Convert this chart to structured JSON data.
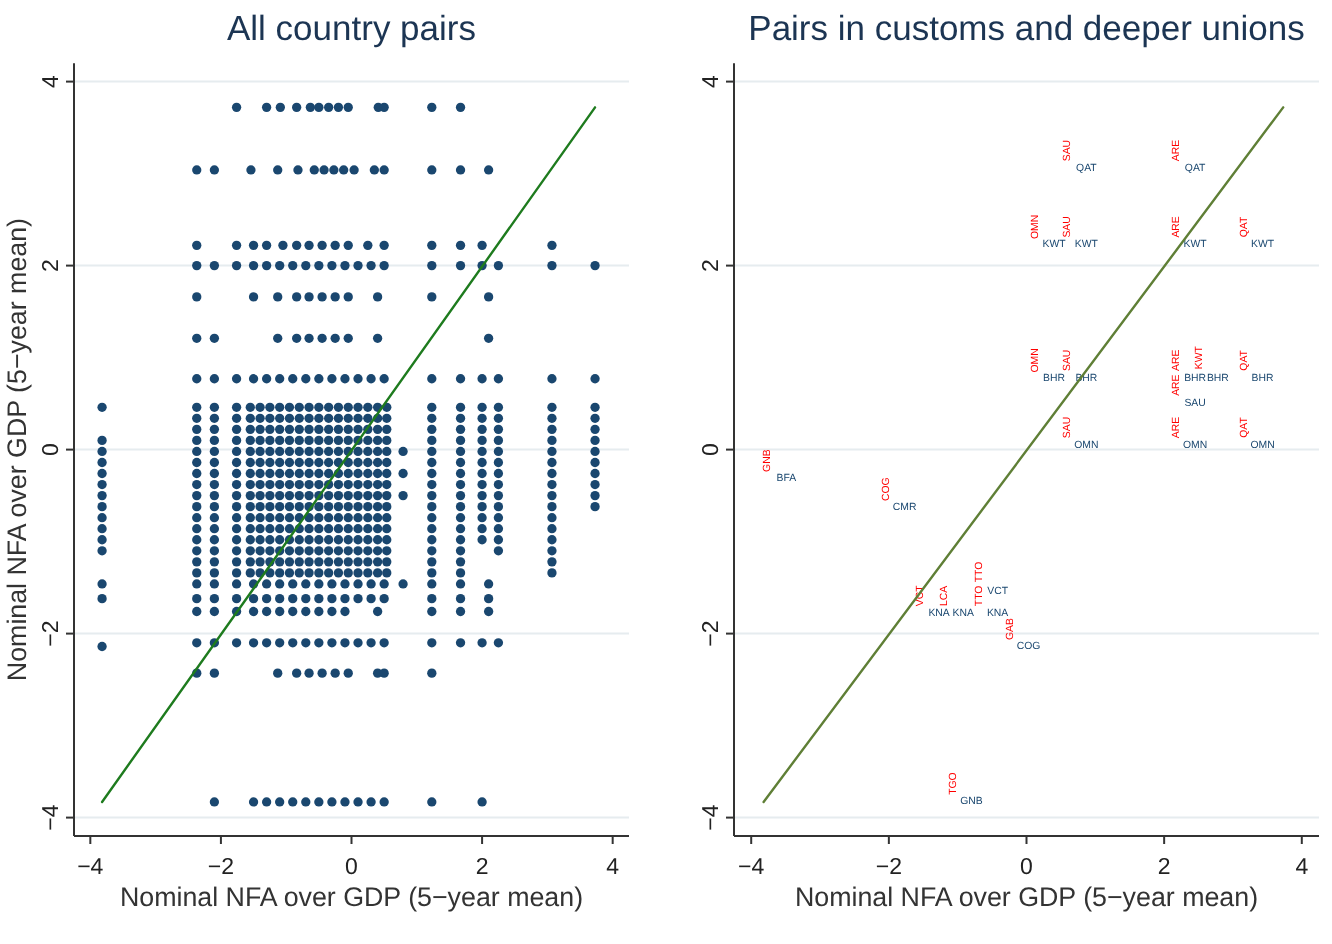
{
  "chart_data": [
    {
      "type": "scatter",
      "title": "All country pairs",
      "xlabel": "Nominal NFA over GDP (5−year mean)",
      "ylabel": "Nominal NFA over GDP (5−year mean)",
      "grid": "y",
      "xlim": [
        -4.25,
        4.25
      ],
      "ylim": [
        -4.2,
        4.2
      ],
      "xticks": [
        -4,
        -2,
        0,
        2,
        4
      ],
      "yticks": [
        -4,
        -2,
        0,
        2,
        4
      ],
      "series": [
        {
          "color": "#1a476f",
          "marker": "circle",
          "x": [
            -1.76,
            -1.3,
            -1.09,
            -0.84,
            -0.63,
            -0.5,
            -0.35,
            -0.2,
            -0.05,
            0.41,
            0.5,
            1.23,
            1.67,
            -2.37,
            -2.1,
            -1.54,
            -1.13,
            -0.82,
            -0.57,
            -0.42,
            -0.27,
            -0.12,
            0.04,
            0.35,
            0.5,
            1.23,
            1.67,
            2.1,
            -2.37,
            -1.76,
            -1.5,
            -1.3,
            -1.05,
            -0.84,
            -0.65,
            -0.45,
            -0.25,
            -0.05,
            0.25,
            0.5,
            1.23,
            1.67,
            2,
            3.07,
            -2.37,
            -2.1,
            -1.76,
            -1.5,
            -1.3,
            -1.1,
            -0.9,
            -0.7,
            -0.5,
            -0.3,
            -0.1,
            0.1,
            0.3,
            0.5,
            1.23,
            1.67,
            2,
            2.25,
            3.07,
            3.73,
            -2.37,
            -1.5,
            -1.13,
            -0.84,
            -0.65,
            -0.45,
            -0.25,
            -0.05,
            0.4,
            1.23,
            2.1,
            -2.37,
            -2.1,
            -1.13,
            -0.84,
            -0.65,
            -0.45,
            -0.25,
            -0.05,
            0.4,
            2.1,
            -2.37,
            -2.1,
            -1.76,
            -1.5,
            -1.3,
            -1.1,
            -0.9,
            -0.7,
            -0.5,
            -0.3,
            -0.1,
            0.1,
            0.3,
            0.5,
            1.23,
            1.67,
            2,
            2.25,
            3.07,
            3.73,
            -2.37,
            -2.1,
            -1.76,
            -1.55,
            -1.4,
            -1.25,
            -1.1,
            -0.95,
            -0.8,
            -0.65,
            -0.5,
            -0.35,
            -0.2,
            -0.05,
            0.1,
            0.25,
            0.4,
            0.54,
            1.23,
            1.67,
            3.07,
            -3.82,
            2,
            2.25,
            3.73,
            -2.37,
            -2.1,
            -1.76,
            -1.55,
            -1.4,
            -1.25,
            -1.1,
            -0.95,
            -0.8,
            -0.65,
            -0.5,
            -0.35,
            -0.2,
            -0.05,
            0.1,
            0.25,
            0.4,
            0.54,
            1.23,
            1.67,
            3.07,
            2,
            2.25,
            3.73,
            -2.37,
            -2.1,
            -1.76,
            -1.55,
            -1.4,
            -1.25,
            -1.1,
            -0.95,
            -0.8,
            -0.65,
            -0.5,
            -0.35,
            -0.2,
            -0.05,
            0.1,
            0.25,
            0.4,
            0.54,
            1.23,
            1.67,
            3.07,
            2,
            2.25,
            3.73,
            -2.37,
            -2.1,
            -1.76,
            -1.55,
            -1.4,
            -1.25,
            -1.1,
            -0.95,
            -0.8,
            -0.65,
            -0.5,
            -0.35,
            -0.2,
            -0.05,
            0.1,
            0.25,
            0.4,
            0.54,
            1.23,
            1.67,
            3.07,
            -3.82,
            2,
            2.25,
            3.73,
            -2.37,
            -2.1,
            -1.76,
            -1.55,
            -1.4,
            -1.25,
            -1.1,
            -0.95,
            -0.8,
            -0.65,
            -0.5,
            -0.35,
            -0.2,
            -0.05,
            0.1,
            0.25,
            0.4,
            0.54,
            1.23,
            1.67,
            3.07,
            -3.82,
            0.79,
            2,
            2.25,
            3.73,
            -2.37,
            -2.1,
            -1.76,
            -1.55,
            -1.4,
            -1.25,
            -1.1,
            -0.95,
            -0.8,
            -0.65,
            -0.5,
            -0.35,
            -0.2,
            -0.05,
            0.1,
            0.25,
            0.4,
            0.54,
            1.23,
            1.67,
            3.07,
            -3.82,
            2,
            2.25,
            3.73,
            -2.37,
            -2.1,
            -1.76,
            -1.55,
            -1.4,
            -1.25,
            -1.1,
            -0.95,
            -0.8,
            -0.65,
            -0.5,
            -0.35,
            -0.2,
            -0.05,
            0.1,
            0.25,
            0.4,
            0.54,
            1.23,
            1.67,
            3.07,
            -3.82,
            0.79,
            2,
            2.25,
            3.73,
            -2.37,
            -2.1,
            -1.76,
            -1.55,
            -1.4,
            -1.25,
            -1.1,
            -0.95,
            -0.8,
            -0.65,
            -0.5,
            -0.35,
            -0.2,
            -0.05,
            0.1,
            0.25,
            0.4,
            0.54,
            1.23,
            1.67,
            3.07,
            -3.82,
            2,
            2.25,
            3.73,
            -2.37,
            -2.1,
            -1.76,
            -1.55,
            -1.4,
            -1.25,
            -1.1,
            -0.95,
            -0.8,
            -0.65,
            -0.5,
            -0.35,
            -0.2,
            -0.05,
            0.1,
            0.25,
            0.4,
            0.54,
            1.23,
            1.67,
            3.07,
            -3.82,
            0.79,
            2,
            2.25,
            3.73,
            -2.37,
            -2.1,
            -1.76,
            -1.55,
            -1.4,
            -1.25,
            -1.1,
            -0.95,
            -0.8,
            -0.65,
            -0.5,
            -0.35,
            -0.2,
            -0.05,
            0.1,
            0.25,
            0.4,
            0.54,
            1.23,
            1.67,
            3.07,
            -3.82,
            2,
            2.25,
            3.73,
            -2.37,
            -2.1,
            -1.76,
            -1.55,
            -1.4,
            -1.25,
            -1.1,
            -0.95,
            -0.8,
            -0.65,
            -0.5,
            -0.35,
            -0.2,
            -0.05,
            0.1,
            0.25,
            0.4,
            0.54,
            1.23,
            1.67,
            3.07,
            -3.82,
            2,
            2.25,
            -2.37,
            -2.1,
            -1.76,
            -1.55,
            -1.4,
            -1.25,
            -1.1,
            -0.95,
            -0.8,
            -0.65,
            -0.5,
            -0.35,
            -0.2,
            -0.05,
            0.1,
            0.25,
            0.4,
            0.54,
            1.23,
            1.67,
            3.07,
            -3.82,
            2,
            2.25,
            -2.37,
            -2.1,
            -1.76,
            -1.55,
            -1.4,
            -1.25,
            -1.1,
            -0.95,
            -0.8,
            -0.65,
            -0.5,
            -0.35,
            -0.2,
            -0.05,
            0.1,
            0.25,
            0.4,
            0.54,
            1.23,
            1.67,
            3.07,
            -3.82,
            2,
            2.25,
            -2.37,
            -2.1,
            -1.76,
            -1.55,
            -1.4,
            -1.25,
            -1.1,
            -0.95,
            -0.8,
            -0.65,
            -0.5,
            -0.35,
            -0.2,
            -0.05,
            0.1,
            0.25,
            0.4,
            0.54,
            1.23,
            1.67,
            3.07,
            -3.82,
            2.25,
            -2.37,
            -2.1,
            -1.76,
            -1.55,
            -1.4,
            -1.25,
            -1.1,
            -0.95,
            -0.8,
            -0.65,
            -0.5,
            -0.35,
            -0.2,
            -0.05,
            0.1,
            0.25,
            0.4,
            0.54,
            1.23,
            1.67,
            3.07,
            -2.37,
            -2.1,
            -1.76,
            -1.55,
            -1.4,
            -1.25,
            -1.1,
            -0.95,
            -0.8,
            -0.65,
            -0.5,
            -0.35,
            -0.2,
            -0.05,
            0.1,
            0.25,
            0.4,
            0.54,
            1.23,
            1.67,
            3.07,
            -3.82,
            -2.37,
            -2.1,
            -1.76,
            -1.5,
            -1.3,
            -1.1,
            -0.9,
            -0.7,
            -0.5,
            -0.3,
            -0.1,
            0.1,
            0.3,
            0.5,
            0.79,
            1.23,
            1.67,
            2.1,
            -3.82,
            -2.37,
            -2.1,
            -1.76,
            -1.5,
            -1.3,
            -1.1,
            -0.9,
            -0.7,
            -0.5,
            -0.3,
            -0.1,
            0.1,
            0.3,
            0.5,
            1.23,
            1.67,
            2.1,
            -2.37,
            -2.1,
            -1.76,
            -1.5,
            -1.3,
            -1.1,
            -0.9,
            -0.7,
            -0.5,
            -0.3,
            -0.1,
            0.4,
            1.23,
            1.67,
            2.1,
            -2.37,
            -2.1,
            -1.76,
            -1.5,
            -1.3,
            -1.1,
            -0.9,
            -0.7,
            -0.5,
            -0.3,
            -0.1,
            0.1,
            0.3,
            0.5,
            1.23,
            1.67,
            2,
            2.25,
            -3.82,
            -2.37,
            -2.1,
            -1.13,
            -0.84,
            -0.65,
            -0.45,
            -0.25,
            -0.05,
            0.4,
            0.5,
            1.23,
            -2.1,
            -1.5,
            -1.3,
            -1.1,
            -0.9,
            -0.7,
            -0.5,
            -0.3,
            -0.1,
            0.1,
            0.3,
            0.5,
            1.23,
            2
          ],
          "values": [
            3.72,
            3.72,
            3.72,
            3.72,
            3.72,
            3.72,
            3.72,
            3.72,
            3.72,
            3.72,
            3.72,
            3.72,
            3.72,
            3.04,
            3.04,
            3.04,
            3.04,
            3.04,
            3.04,
            3.04,
            3.04,
            3.04,
            3.04,
            3.04,
            3.04,
            3.04,
            3.04,
            3.04,
            2.22,
            2.22,
            2.22,
            2.22,
            2.22,
            2.22,
            2.22,
            2.22,
            2.22,
            2.22,
            2.22,
            2.22,
            2.22,
            2.22,
            2.22,
            2.22,
            2,
            2,
            2,
            2,
            2,
            2,
            2,
            2,
            2,
            2,
            2,
            2,
            2,
            2,
            2,
            2,
            2,
            2,
            2,
            2,
            1.66,
            1.66,
            1.66,
            1.66,
            1.66,
            1.66,
            1.66,
            1.66,
            1.66,
            1.66,
            1.66,
            1.21,
            1.21,
            1.21,
            1.21,
            1.21,
            1.21,
            1.21,
            1.21,
            1.21,
            1.21,
            0.77,
            0.77,
            0.77,
            0.77,
            0.77,
            0.77,
            0.77,
            0.77,
            0.77,
            0.77,
            0.77,
            0.77,
            0.77,
            0.77,
            0.77,
            0.77,
            0.77,
            0.77,
            0.77,
            0.77,
            0.46,
            0.46,
            0.46,
            0.46,
            0.46,
            0.46,
            0.46,
            0.46,
            0.46,
            0.46,
            0.46,
            0.46,
            0.46,
            0.46,
            0.46,
            0.46,
            0.46,
            0.46,
            0.46,
            0.46,
            0.46,
            0.46,
            0.46,
            0.46,
            0.46,
            0.34,
            0.34,
            0.34,
            0.34,
            0.34,
            0.34,
            0.34,
            0.34,
            0.34,
            0.34,
            0.34,
            0.34,
            0.34,
            0.34,
            0.34,
            0.34,
            0.34,
            0.34,
            0.34,
            0.34,
            0.34,
            0.34,
            0.34,
            0.34,
            0.22,
            0.22,
            0.22,
            0.22,
            0.22,
            0.22,
            0.22,
            0.22,
            0.22,
            0.22,
            0.22,
            0.22,
            0.22,
            0.22,
            0.22,
            0.22,
            0.22,
            0.22,
            0.22,
            0.22,
            0.22,
            0.22,
            0.22,
            0.22,
            0.1,
            0.1,
            0.1,
            0.1,
            0.1,
            0.1,
            0.1,
            0.1,
            0.1,
            0.1,
            0.1,
            0.1,
            0.1,
            0.1,
            0.1,
            0.1,
            0.1,
            0.1,
            0.1,
            0.1,
            0.1,
            0.1,
            0.1,
            0.1,
            0.1,
            -0.02,
            -0.02,
            -0.02,
            -0.02,
            -0.02,
            -0.02,
            -0.02,
            -0.02,
            -0.02,
            -0.02,
            -0.02,
            -0.02,
            -0.02,
            -0.02,
            -0.02,
            -0.02,
            -0.02,
            -0.02,
            -0.02,
            -0.02,
            -0.02,
            -0.02,
            -0.02,
            -0.02,
            -0.02,
            -0.02,
            -0.14,
            -0.14,
            -0.14,
            -0.14,
            -0.14,
            -0.14,
            -0.14,
            -0.14,
            -0.14,
            -0.14,
            -0.14,
            -0.14,
            -0.14,
            -0.14,
            -0.14,
            -0.14,
            -0.14,
            -0.14,
            -0.14,
            -0.14,
            -0.14,
            -0.14,
            -0.14,
            -0.14,
            -0.14,
            -0.26,
            -0.26,
            -0.26,
            -0.26,
            -0.26,
            -0.26,
            -0.26,
            -0.26,
            -0.26,
            -0.26,
            -0.26,
            -0.26,
            -0.26,
            -0.26,
            -0.26,
            -0.26,
            -0.26,
            -0.26,
            -0.26,
            -0.26,
            -0.26,
            -0.26,
            -0.26,
            -0.26,
            -0.26,
            -0.26,
            -0.38,
            -0.38,
            -0.38,
            -0.38,
            -0.38,
            -0.38,
            -0.38,
            -0.38,
            -0.38,
            -0.38,
            -0.38,
            -0.38,
            -0.38,
            -0.38,
            -0.38,
            -0.38,
            -0.38,
            -0.38,
            -0.38,
            -0.38,
            -0.38,
            -0.38,
            -0.38,
            -0.38,
            -0.38,
            -0.5,
            -0.5,
            -0.5,
            -0.5,
            -0.5,
            -0.5,
            -0.5,
            -0.5,
            -0.5,
            -0.5,
            -0.5,
            -0.5,
            -0.5,
            -0.5,
            -0.5,
            -0.5,
            -0.5,
            -0.5,
            -0.5,
            -0.5,
            -0.5,
            -0.5,
            -0.5,
            -0.5,
            -0.5,
            -0.5,
            -0.62,
            -0.62,
            -0.62,
            -0.62,
            -0.62,
            -0.62,
            -0.62,
            -0.62,
            -0.62,
            -0.62,
            -0.62,
            -0.62,
            -0.62,
            -0.62,
            -0.62,
            -0.62,
            -0.62,
            -0.62,
            -0.62,
            -0.62,
            -0.62,
            -0.62,
            -0.62,
            -0.62,
            -0.62,
            -0.74,
            -0.74,
            -0.74,
            -0.74,
            -0.74,
            -0.74,
            -0.74,
            -0.74,
            -0.74,
            -0.74,
            -0.74,
            -0.74,
            -0.74,
            -0.74,
            -0.74,
            -0.74,
            -0.74,
            -0.74,
            -0.74,
            -0.74,
            -0.74,
            -0.74,
            -0.74,
            -0.74,
            -0.86,
            -0.86,
            -0.86,
            -0.86,
            -0.86,
            -0.86,
            -0.86,
            -0.86,
            -0.86,
            -0.86,
            -0.86,
            -0.86,
            -0.86,
            -0.86,
            -0.86,
            -0.86,
            -0.86,
            -0.86,
            -0.86,
            -0.86,
            -0.86,
            -0.86,
            -0.86,
            -0.86,
            -0.98,
            -0.98,
            -0.98,
            -0.98,
            -0.98,
            -0.98,
            -0.98,
            -0.98,
            -0.98,
            -0.98,
            -0.98,
            -0.98,
            -0.98,
            -0.98,
            -0.98,
            -0.98,
            -0.98,
            -0.98,
            -0.98,
            -0.98,
            -0.98,
            -0.98,
            -0.98,
            -0.98,
            -1.1,
            -1.1,
            -1.1,
            -1.1,
            -1.1,
            -1.1,
            -1.1,
            -1.1,
            -1.1,
            -1.1,
            -1.1,
            -1.1,
            -1.1,
            -1.1,
            -1.1,
            -1.1,
            -1.1,
            -1.1,
            -1.1,
            -1.1,
            -1.1,
            -1.1,
            -1.1,
            -1.22,
            -1.22,
            -1.22,
            -1.22,
            -1.22,
            -1.22,
            -1.22,
            -1.22,
            -1.22,
            -1.22,
            -1.22,
            -1.22,
            -1.22,
            -1.22,
            -1.22,
            -1.22,
            -1.22,
            -1.22,
            -1.22,
            -1.22,
            -1.22,
            -1.34,
            -1.34,
            -1.34,
            -1.34,
            -1.34,
            -1.34,
            -1.34,
            -1.34,
            -1.34,
            -1.34,
            -1.34,
            -1.34,
            -1.34,
            -1.34,
            -1.34,
            -1.34,
            -1.34,
            -1.34,
            -1.34,
            -1.34,
            -1.34,
            -1.46,
            -1.46,
            -1.46,
            -1.46,
            -1.46,
            -1.46,
            -1.46,
            -1.46,
            -1.46,
            -1.46,
            -1.46,
            -1.46,
            -1.46,
            -1.46,
            -1.46,
            -1.46,
            -1.46,
            -1.46,
            -1.46,
            -1.62,
            -1.62,
            -1.62,
            -1.62,
            -1.62,
            -1.62,
            -1.62,
            -1.62,
            -1.62,
            -1.62,
            -1.62,
            -1.62,
            -1.62,
            -1.62,
            -1.62,
            -1.62,
            -1.62,
            -1.62,
            -1.76,
            -1.76,
            -1.76,
            -1.76,
            -1.76,
            -1.76,
            -1.76,
            -1.76,
            -1.76,
            -1.76,
            -1.76,
            -1.76,
            -1.76,
            -1.76,
            -1.76,
            -2.1,
            -2.1,
            -2.1,
            -2.1,
            -2.1,
            -2.1,
            -2.1,
            -2.1,
            -2.1,
            -2.1,
            -2.1,
            -2.1,
            -2.1,
            -2.1,
            -2.1,
            -2.1,
            -2.1,
            -2.1,
            -2.14,
            -2.43,
            -2.43,
            -2.43,
            -2.43,
            -2.43,
            -2.43,
            -2.43,
            -2.43,
            -2.43,
            -2.43,
            -2.43,
            -3.83,
            -3.83,
            -3.83,
            -3.83,
            -3.83,
            -3.83,
            -3.83,
            -3.83,
            -3.83,
            -3.83,
            -3.83,
            -3.83,
            -3.83,
            -3.83
          ]
        },
        {
          "type": "line",
          "color": "#1e7b1e",
          "x": [
            -3.82,
            3.73
          ],
          "values": [
            -3.83,
            3.72
          ]
        }
      ]
    },
    {
      "type": "scatter",
      "title": "Pairs in customs and deeper unions",
      "xlabel": "Nominal NFA over GDP (5−year mean)",
      "grid": "y",
      "xlim": [
        -4.25,
        4.25
      ],
      "ylim": [
        -4.2,
        4.2
      ],
      "xticks": [
        -4,
        -2,
        0,
        2,
        4
      ],
      "yticks": [
        -4,
        -2,
        0,
        2,
        4
      ],
      "series": [
        {
          "type": "line",
          "color": "#5f7f36",
          "x": [
            -3.82,
            3.73
          ],
          "values": [
            -3.83,
            3.72
          ]
        }
      ],
      "annotations": [
        "SAU",
        "QAT",
        "ARE",
        "QAT",
        "OMN",
        "KWT",
        "SAU",
        "KWT",
        "ARE",
        "KWT",
        "QAT",
        "KWT",
        "OMN",
        "BHR",
        "SAU",
        "BHR",
        "ARE",
        "BHR",
        "KWT",
        "BHR",
        "QAT",
        "BHR",
        "ARE",
        "SAU",
        "ARE",
        "OMN",
        "QAT",
        "OMN",
        "SAU",
        "OMN",
        "GNB",
        "BFA",
        "COG",
        "CMR",
        "TTO",
        "VCT",
        "VCT",
        "KNA",
        "LCA",
        "KNA",
        "TTO",
        "KNA",
        "GAB",
        "COG",
        "TGO",
        "GNB"
      ]
    }
  ]
}
